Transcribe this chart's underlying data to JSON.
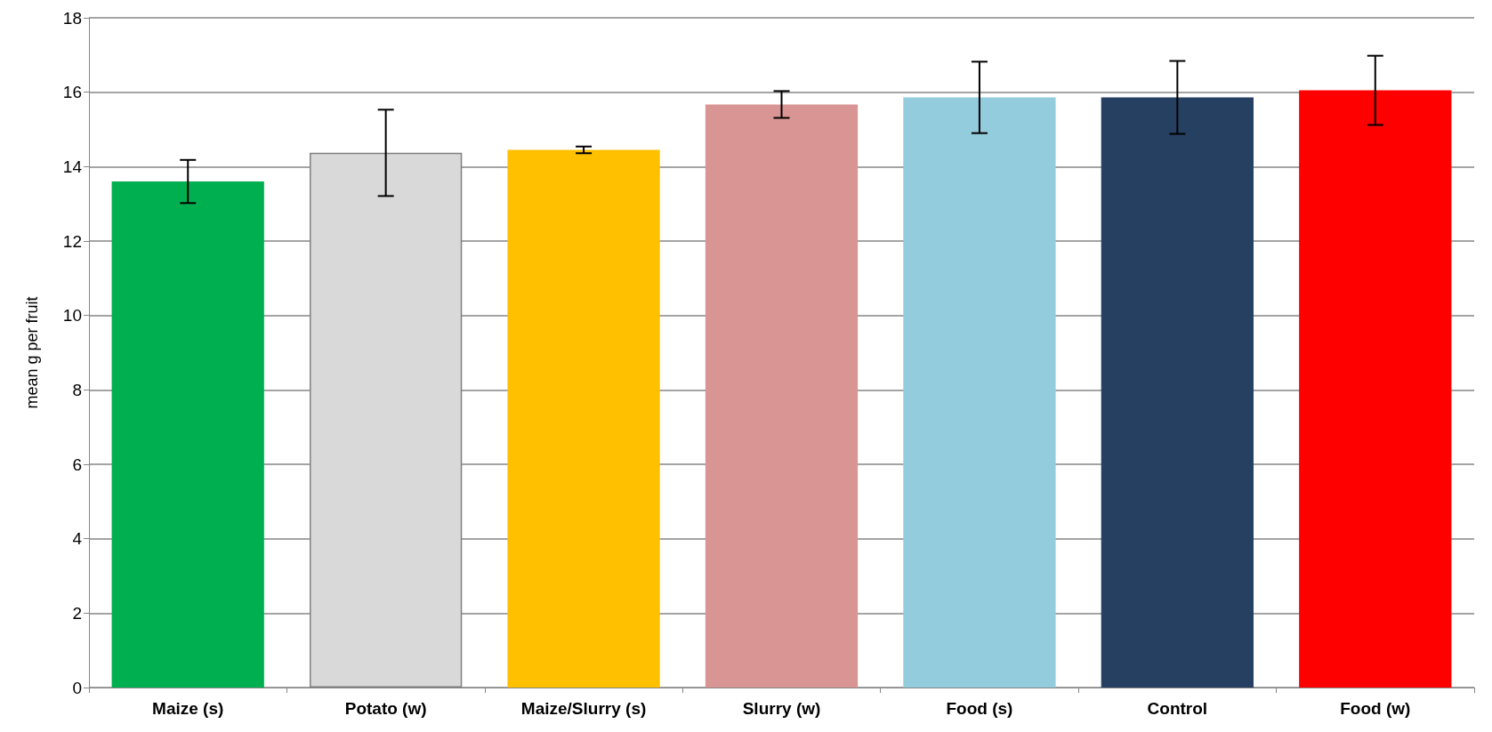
{
  "chart_data": {
    "type": "bar",
    "ylabel": "mean g per fruit",
    "categories": [
      "Maize (s)",
      "Potato (w)",
      "Maize/Slurry (s)",
      "Slurry (w)",
      "Food (s)",
      "Control",
      "Food (w)"
    ],
    "values": [
      13.6,
      14.37,
      14.45,
      15.67,
      15.86,
      15.86,
      16.05
    ],
    "errors": [
      0.58,
      1.16,
      0.09,
      0.36,
      0.96,
      0.98,
      0.93
    ],
    "colors": [
      "#00b050",
      "#d9d9d9",
      "#ffc000",
      "#d99594",
      "#93cddd",
      "#254061",
      "#ff0000"
    ],
    "ylim": [
      0,
      18
    ],
    "yticks": [
      0,
      2,
      4,
      6,
      8,
      10,
      12,
      14,
      16,
      18
    ],
    "grid": "y"
  }
}
